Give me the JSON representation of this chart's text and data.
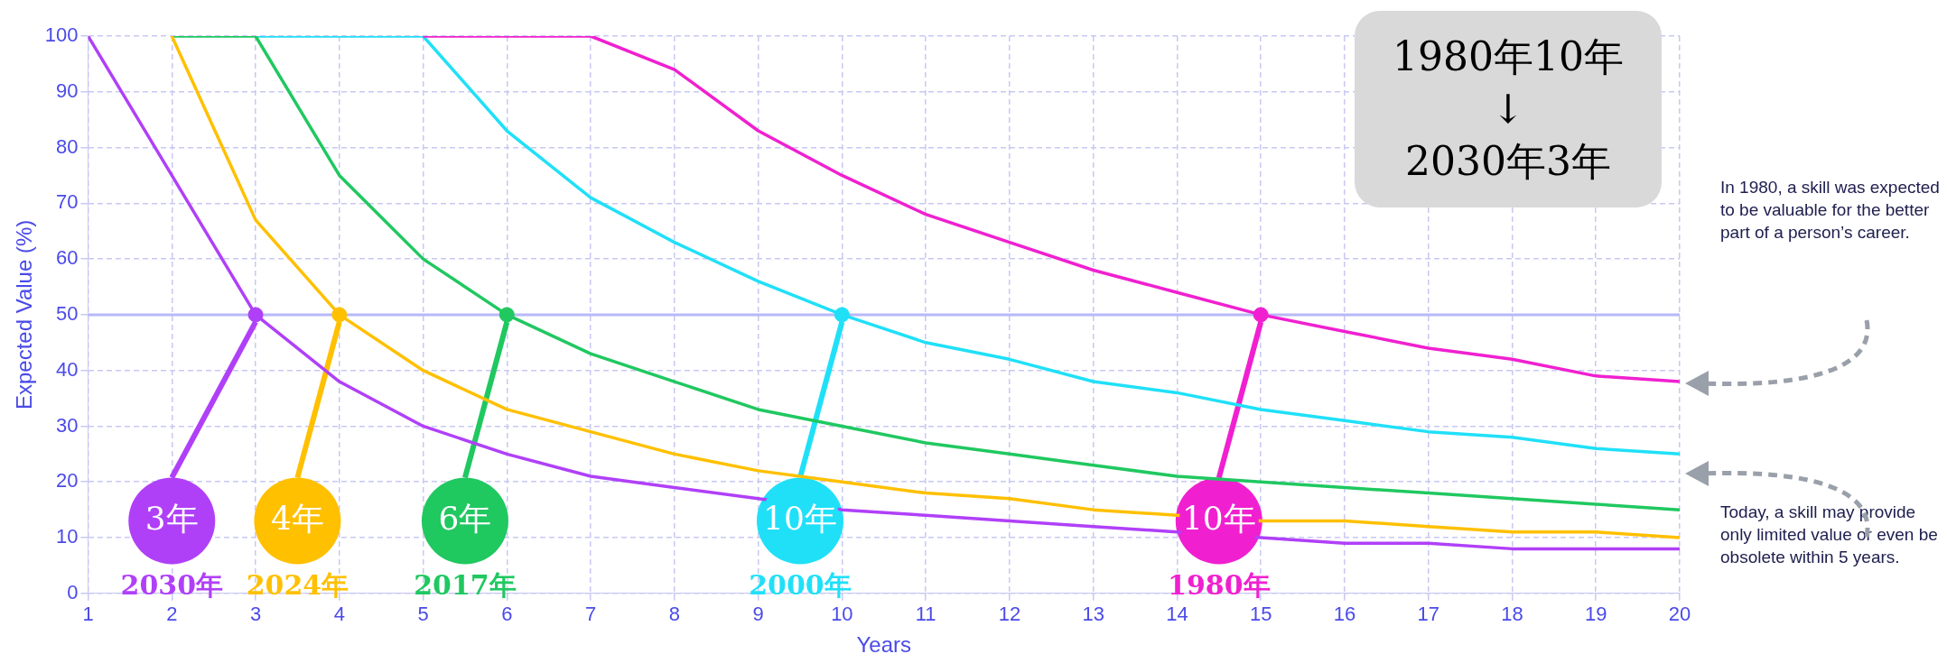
{
  "chart_data": {
    "type": "line",
    "xlabel": "Years",
    "ylabel": "Expected Value (%)",
    "x": [
      1,
      2,
      3,
      4,
      5,
      6,
      7,
      8,
      9,
      10,
      11,
      12,
      13,
      14,
      15,
      16,
      17,
      18,
      19,
      20
    ],
    "xlim": [
      1,
      20
    ],
    "xticks": [
      1,
      2,
      3,
      4,
      5,
      6,
      7,
      8,
      9,
      10,
      11,
      12,
      13,
      14,
      15,
      16,
      17,
      18,
      19,
      20
    ],
    "ylim": [
      0,
      100
    ],
    "yticks": [
      0,
      10,
      20,
      30,
      40,
      50,
      60,
      70,
      80,
      90,
      100
    ],
    "grid": true,
    "legend": false,
    "marker": "none",
    "series": [
      {
        "name": "2030年",
        "color": "#b040f8",
        "values": [
          100,
          75,
          50,
          38,
          30,
          25,
          21,
          19,
          17,
          15,
          14,
          13,
          12,
          11,
          10,
          9,
          9,
          8,
          8,
          8
        ]
      },
      {
        "name": "2024年",
        "color": "#ffc000",
        "values": [
          null,
          100,
          67,
          50,
          40,
          33,
          29,
          25,
          22,
          20,
          18,
          17,
          15,
          14,
          13,
          13,
          12,
          11,
          11,
          10
        ]
      },
      {
        "name": "2017年",
        "color": "#20c860",
        "values": [
          null,
          100,
          100,
          75,
          60,
          50,
          43,
          38,
          33,
          30,
          27,
          25,
          23,
          21,
          20,
          19,
          18,
          17,
          16,
          15
        ]
      },
      {
        "name": "2000年",
        "color": "#20e0f8",
        "values": [
          null,
          null,
          100,
          100,
          100,
          83,
          71,
          63,
          56,
          50,
          45,
          42,
          38,
          36,
          33,
          31,
          29,
          28,
          26,
          25
        ]
      },
      {
        "name": "1980年",
        "color": "#f020d0",
        "values": [
          null,
          null,
          null,
          null,
          100,
          100,
          100,
          94,
          83,
          75,
          68,
          63,
          58,
          54,
          50,
          47,
          44,
          42,
          39,
          38
        ]
      },
      {
        "type": "scatter",
        "marker": "circle",
        "x": [
          3,
          4,
          6,
          10,
          15
        ],
        "values": [
          50,
          50,
          50,
          50,
          50
        ],
        "colors": [
          "#b040f8",
          "#ffc000",
          "#20c860",
          "#20e0f8",
          "#f020d0"
        ]
      }
    ],
    "ref_lines": [
      {
        "axis": "y",
        "value": 50,
        "color": "#b8b8f8"
      }
    ],
    "annotations": [
      {
        "text": "3年",
        "x": 3,
        "y": 50
      },
      {
        "text": "4年",
        "x": 4,
        "y": 50
      },
      {
        "text": "6年",
        "x": 6,
        "y": 50
      },
      {
        "text": "10年",
        "x": 10,
        "y": 50
      },
      {
        "text": "10年",
        "x": 15,
        "y": 50
      },
      "1980年10年\n↓\n2030年3年",
      "In 1980, a skill was expected to be valuable for the better part of a person’s career.",
      "Today, a skill may provide only limited value or even be obsolete within 5 years."
    ]
  }
}
